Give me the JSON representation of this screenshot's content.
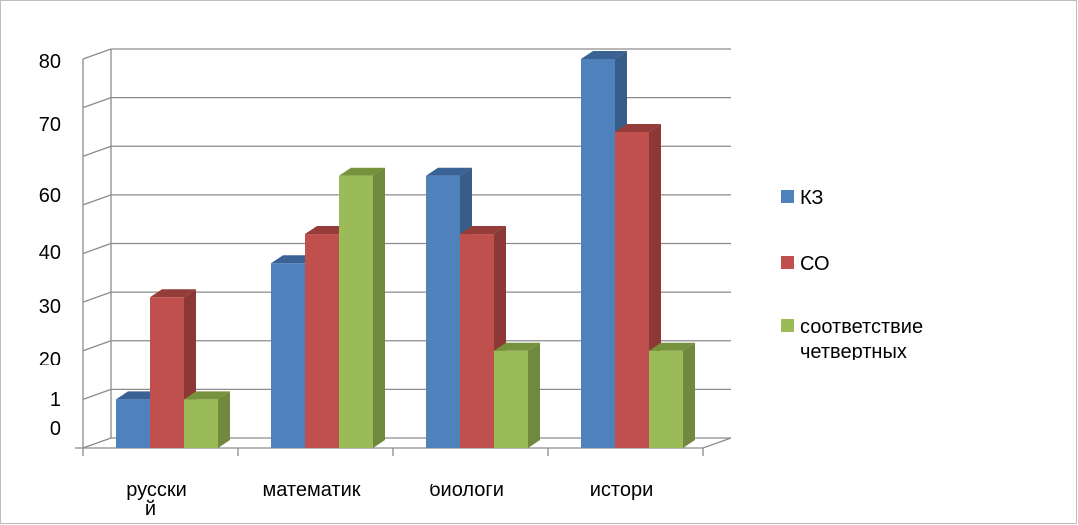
{
  "chart_data": {
    "type": "bar",
    "categories": [
      "русски\nй",
      "математик",
      "биологи",
      "истори"
    ],
    "series": [
      {
        "name": "КЗ",
        "values": [
          10,
          38,
          56,
          80
        ]
      },
      {
        "name": "СО",
        "values": [
          31,
          44,
          44,
          65
        ]
      },
      {
        "name": "соответствие\nчетвертных",
        "values": [
          10,
          56,
          20,
          20
        ]
      }
    ],
    "y_tick_labels": [
      "0",
      "1",
      "20",
      "30",
      "40",
      "60",
      "70",
      "80"
    ],
    "ylim": [
      0,
      80
    ],
    "grid": true,
    "legend_position": "right",
    "colors": {
      "series": [
        "#4F81BD",
        "#C0504D",
        "#9BBB59"
      ],
      "series_side": [
        "#385D8A",
        "#8C3836",
        "#71893F"
      ],
      "series_top": [
        "#3A6294",
        "#943C39",
        "#76923C"
      ],
      "grid": "#8c8c8c",
      "axis": "#8c8c8c"
    }
  }
}
